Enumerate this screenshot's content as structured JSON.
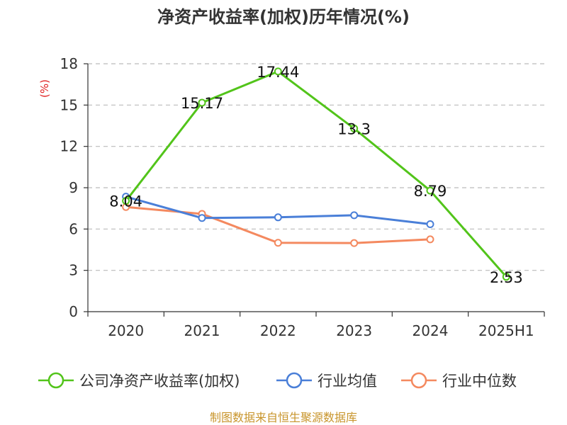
{
  "chart_data": {
    "type": "line",
    "title": "净资产收益率(加权)历年情况(%)",
    "ylabel": "(%)",
    "categories": [
      "2020",
      "2021",
      "2022",
      "2023",
      "2024",
      "2025H1"
    ],
    "yticks": [
      "0",
      "3",
      "6",
      "9",
      "12",
      "15",
      "18"
    ],
    "ylim": [
      0,
      18
    ],
    "grid": true,
    "legend_position": "bottom",
    "series": [
      {
        "name": "公司净资产收益率(加权)",
        "color": "#52c41a",
        "values": [
          8.04,
          15.17,
          17.44,
          13.3,
          8.79,
          2.53
        ],
        "labels": [
          "8.04",
          "15.17",
          "17.44",
          "13.3",
          "8.79",
          "2.53"
        ]
      },
      {
        "name": "行业均值",
        "color": "#4a7fd8",
        "values": [
          8.35,
          6.8,
          6.85,
          7.0,
          6.35,
          null
        ]
      },
      {
        "name": "行业中位数",
        "color": "#f4895f",
        "values": [
          7.6,
          7.1,
          5.0,
          4.98,
          5.25,
          null
        ]
      }
    ],
    "source": "制图数据来自恒生聚源数据库",
    "colors": {
      "axis": "#333333",
      "grid": "#bbbbbb",
      "unit": "#e02020",
      "source": "#c8952c"
    }
  }
}
